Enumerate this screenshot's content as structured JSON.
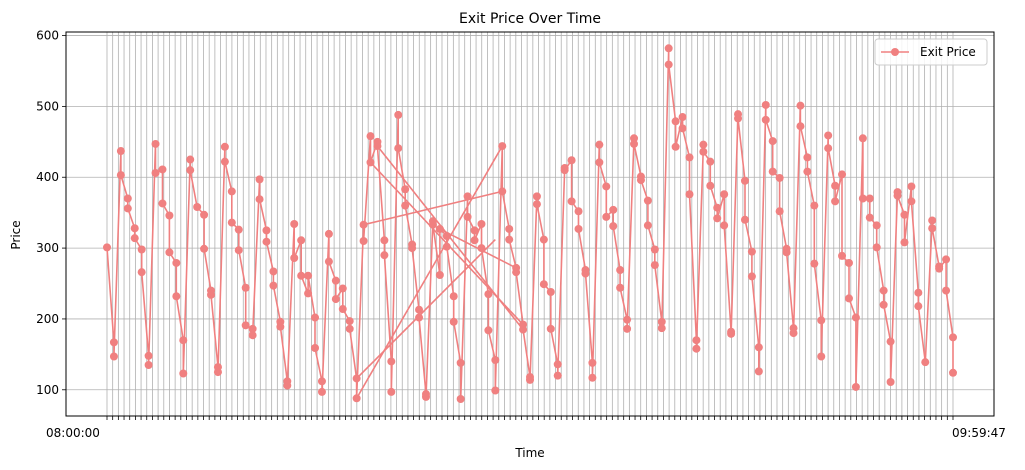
{
  "chart_data": {
    "type": "line",
    "title": "Exit Price Over Time",
    "xlabel": "Time",
    "ylabel": "Price",
    "ylim": [
      63,
      605
    ],
    "yticks": [
      100,
      200,
      300,
      400,
      500,
      600
    ],
    "x_tick_count": 150,
    "x_tick_labels_first": "08:00:00",
    "x_tick_labels_last": "09:59:47",
    "grid": true,
    "legend_position": "top-right",
    "series": [
      {
        "name": "Exit Price",
        "color": "#F08080",
        "points": [
          [
            0,
            301
          ],
          [
            1,
            167
          ],
          [
            1,
            147
          ],
          [
            2,
            437
          ],
          [
            2,
            403
          ],
          [
            3,
            370
          ],
          [
            3,
            356
          ],
          [
            4,
            328
          ],
          [
            4,
            314
          ],
          [
            5,
            298
          ],
          [
            5,
            266
          ],
          [
            6,
            148
          ],
          [
            6,
            135
          ],
          [
            7,
            447
          ],
          [
            7,
            406
          ],
          [
            8,
            411
          ],
          [
            8,
            363
          ],
          [
            9,
            346
          ],
          [
            9,
            294
          ],
          [
            10,
            279
          ],
          [
            10,
            232
          ],
          [
            11,
            170
          ],
          [
            11,
            123
          ],
          [
            12,
            425
          ],
          [
            12,
            410
          ],
          [
            13,
            358
          ],
          [
            14,
            347
          ],
          [
            14,
            299
          ],
          [
            15,
            240
          ],
          [
            15,
            234
          ],
          [
            16,
            132
          ],
          [
            16,
            125
          ],
          [
            17,
            443
          ],
          [
            17,
            422
          ],
          [
            18,
            380
          ],
          [
            18,
            336
          ],
          [
            19,
            326
          ],
          [
            19,
            297
          ],
          [
            20,
            244
          ],
          [
            20,
            191
          ],
          [
            21,
            186
          ],
          [
            21,
            177
          ],
          [
            22,
            397
          ],
          [
            22,
            369
          ],
          [
            23,
            325
          ],
          [
            23,
            309
          ],
          [
            24,
            267
          ],
          [
            24,
            247
          ],
          [
            25,
            196
          ],
          [
            25,
            189
          ],
          [
            26,
            112
          ],
          [
            26,
            106
          ],
          [
            27,
            334
          ],
          [
            27,
            286
          ],
          [
            28,
            311
          ],
          [
            28,
            261
          ],
          [
            29,
            236
          ],
          [
            29,
            261
          ],
          [
            30,
            202
          ],
          [
            30,
            159
          ],
          [
            31,
            112
          ],
          [
            31,
            97
          ],
          [
            32,
            320
          ],
          [
            32,
            281
          ],
          [
            33,
            254
          ],
          [
            33,
            228
          ],
          [
            34,
            243
          ],
          [
            34,
            214
          ],
          [
            35,
            197
          ],
          [
            35,
            186
          ],
          [
            36,
            116
          ],
          [
            36,
            88
          ],
          [
            37,
            333
          ],
          [
            37,
            310
          ],
          [
            38,
            458
          ],
          [
            38,
            421
          ],
          [
            39,
            450
          ],
          [
            39,
            444
          ],
          [
            40,
            311
          ],
          [
            40,
            290
          ],
          [
            41,
            140
          ],
          [
            41,
            97
          ],
          [
            42,
            488
          ],
          [
            42,
            441
          ],
          [
            43,
            383
          ],
          [
            43,
            360
          ],
          [
            44,
            305
          ],
          [
            44,
            300
          ],
          [
            45,
            213
          ],
          [
            45,
            202
          ],
          [
            46,
            94
          ],
          [
            46,
            90
          ],
          [
            47,
            338
          ],
          [
            47,
            333
          ],
          [
            48,
            262
          ],
          [
            48,
            327
          ],
          [
            49,
            317
          ],
          [
            49,
            302
          ],
          [
            50,
            232
          ],
          [
            50,
            196
          ],
          [
            51,
            138
          ],
          [
            51,
            87
          ],
          [
            52,
            373
          ],
          [
            52,
            344
          ],
          [
            53,
            325
          ],
          [
            53,
            311
          ],
          [
            54,
            334
          ],
          [
            54,
            300
          ],
          [
            55,
            235
          ],
          [
            55,
            184
          ],
          [
            56,
            142
          ],
          [
            56,
            99
          ],
          [
            57,
            444
          ],
          [
            57,
            380
          ],
          [
            58,
            327
          ],
          [
            58,
            312
          ],
          [
            59,
            272
          ],
          [
            59,
            266
          ],
          [
            60,
            192
          ],
          [
            60,
            185
          ],
          [
            61,
            118
          ],
          [
            61,
            114
          ],
          [
            62,
            373
          ],
          [
            62,
            362
          ],
          [
            63,
            312
          ],
          [
            63,
            249
          ],
          [
            64,
            238
          ],
          [
            64,
            186
          ],
          [
            65,
            136
          ],
          [
            65,
            120
          ],
          [
            66,
            413
          ],
          [
            66,
            410
          ],
          [
            67,
            424
          ],
          [
            67,
            366
          ],
          [
            68,
            352
          ],
          [
            68,
            327
          ],
          [
            69,
            269
          ],
          [
            69,
            264
          ],
          [
            70,
            138
          ],
          [
            70,
            117
          ],
          [
            71,
            446
          ],
          [
            71,
            421
          ],
          [
            72,
            387
          ],
          [
            72,
            344
          ],
          [
            73,
            354
          ],
          [
            73,
            331
          ],
          [
            74,
            269
          ],
          [
            74,
            244
          ],
          [
            75,
            199
          ],
          [
            75,
            186
          ],
          [
            76,
            455
          ],
          [
            76,
            447
          ],
          [
            77,
            401
          ],
          [
            77,
            396
          ],
          [
            78,
            367
          ],
          [
            78,
            332
          ],
          [
            79,
            298
          ],
          [
            79,
            276
          ],
          [
            80,
            196
          ],
          [
            80,
            187
          ],
          [
            81,
            582
          ],
          [
            81,
            559
          ],
          [
            82,
            479
          ],
          [
            82,
            443
          ],
          [
            83,
            485
          ],
          [
            83,
            469
          ],
          [
            84,
            428
          ],
          [
            84,
            376
          ],
          [
            85,
            170
          ],
          [
            85,
            158
          ],
          [
            86,
            446
          ],
          [
            86,
            436
          ],
          [
            87,
            422
          ],
          [
            87,
            388
          ],
          [
            88,
            357
          ],
          [
            88,
            342
          ],
          [
            89,
            376
          ],
          [
            89,
            332
          ],
          [
            90,
            182
          ],
          [
            90,
            179
          ],
          [
            91,
            489
          ],
          [
            91,
            483
          ],
          [
            92,
            395
          ],
          [
            92,
            340
          ],
          [
            93,
            295
          ],
          [
            93,
            260
          ],
          [
            94,
            160
          ],
          [
            94,
            126
          ],
          [
            95,
            502
          ],
          [
            95,
            481
          ],
          [
            96,
            451
          ],
          [
            96,
            408
          ],
          [
            97,
            399
          ],
          [
            97,
            352
          ],
          [
            98,
            299
          ],
          [
            98,
            294
          ],
          [
            99,
            187
          ],
          [
            99,
            180
          ],
          [
            100,
            501
          ],
          [
            100,
            472
          ],
          [
            101,
            428
          ],
          [
            101,
            408
          ],
          [
            102,
            360
          ],
          [
            102,
            278
          ],
          [
            103,
            198
          ],
          [
            103,
            147
          ],
          [
            104,
            459
          ],
          [
            104,
            441
          ],
          [
            105,
            388
          ],
          [
            105,
            366
          ],
          [
            106,
            404
          ],
          [
            106,
            289
          ],
          [
            107,
            279
          ],
          [
            107,
            229
          ],
          [
            108,
            202
          ],
          [
            108,
            104
          ],
          [
            109,
            455
          ],
          [
            109,
            370
          ],
          [
            110,
            370
          ],
          [
            110,
            343
          ],
          [
            111,
            332
          ],
          [
            111,
            301
          ],
          [
            112,
            240
          ],
          [
            112,
            220
          ],
          [
            113,
            168
          ],
          [
            113,
            111
          ],
          [
            114,
            379
          ],
          [
            114,
            374
          ],
          [
            115,
            347
          ],
          [
            115,
            308
          ],
          [
            116,
            387
          ],
          [
            116,
            366
          ],
          [
            117,
            237
          ],
          [
            117,
            218
          ],
          [
            118,
            139
          ],
          [
            119,
            339
          ],
          [
            119,
            328
          ],
          [
            120,
            274
          ],
          [
            120,
            271
          ],
          [
            121,
            284
          ],
          [
            121,
            240
          ],
          [
            122,
            174
          ],
          [
            122,
            124
          ]
        ],
        "extra_segments": [
          [
            [
              36,
              88
            ],
            [
              57,
              444
            ]
          ],
          [
            [
              36,
              116
            ],
            [
              56,
              312
            ]
          ],
          [
            [
              38,
              421
            ],
            [
              60,
              192
            ]
          ],
          [
            [
              39,
              444
            ],
            [
              60,
              185
            ]
          ],
          [
            [
              37,
              333
            ],
            [
              57,
              380
            ]
          ],
          [
            [
              48,
              327
            ],
            [
              59,
              272
            ]
          ]
        ]
      }
    ]
  }
}
